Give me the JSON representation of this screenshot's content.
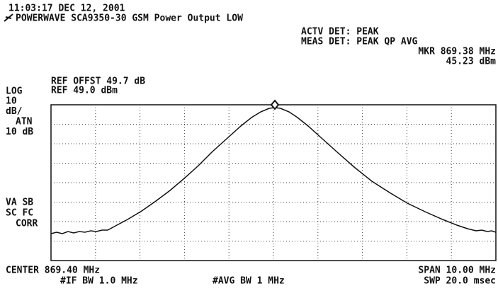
{
  "header": {
    "timestamp": "11:03:17 DEC 12, 2001",
    "title": "POWERWAVE SCA9350-30 GSM Power Output LOW",
    "actv_det": "ACTV DET: PEAK",
    "meas_det": "MEAS DET: PEAK QP AVG",
    "marker_freq": "MKR 869.38 MHz",
    "marker_level": "45.23 dBm"
  },
  "left": {
    "ref_offset": "REF OFFST 49.7 dB",
    "scale_mode": "LOG",
    "ref_level": "REF 49.0 dBm",
    "scale_lines": [
      "10",
      "dB/",
      "ATN",
      "10 dB"
    ],
    "status_lines": [
      "VA SB",
      "SC FC",
      "CORR"
    ]
  },
  "footer": {
    "center": "CENTER 869.40 MHz",
    "span": "SPAN 10.00 MHz",
    "if_bw": "#IF BW 1.0 MHz",
    "avg_bw": "#AVG BW 1 MHz",
    "sweep": "SWP 20.0 msec"
  }
}
